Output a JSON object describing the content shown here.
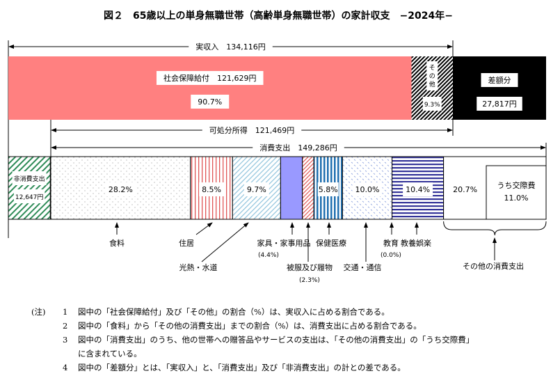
{
  "title": "図２　65歳以上の単身無職世帯（高齢単身無職世帯）の家計収支　−2024年−",
  "colors": {
    "social_security": "#ff8080",
    "difference": "#000000",
    "furniture": "#9999ff",
    "education_recreation": "#333399",
    "medical": "#1f6fb0",
    "non_consumption": "#2e8b57"
  },
  "chart_data": {
    "type": "stacked-bar",
    "income": {
      "label": "実収入　134,116円",
      "total_yen": 134116,
      "segments": [
        {
          "name": "社会保障給付",
          "label": "社会保障給付　121,629円",
          "value_yen": 121629,
          "percent_label": "90.7%",
          "pattern": "solid-red"
        },
        {
          "name": "その他",
          "label": "その他",
          "percent_label": "9.3%",
          "pattern": "diagonal-hatch"
        },
        {
          "name": "差額分",
          "label": "差額分",
          "value_yen": 27817,
          "value_label": "27,817円",
          "pattern": "solid-black"
        }
      ]
    },
    "disposable_income": {
      "label": "可処分所得　121,469円",
      "value_yen": 121469
    },
    "consumption": {
      "label": "消費支出　149,286円",
      "total_yen": 149286,
      "non_consumption": {
        "label": "非消費支出",
        "value_label": "12,647円",
        "value_yen": 12647
      },
      "categories": [
        {
          "name": "食料",
          "percent": 28.2,
          "percent_label": "28.2%",
          "pattern": "dots"
        },
        {
          "name": "住居",
          "percent": 8.5,
          "percent_label": "8.5%",
          "pattern": "red-vertical"
        },
        {
          "name": "光熱・水道",
          "percent": 9.7,
          "percent_label": "9.7%",
          "pattern": "blue-diagonal"
        },
        {
          "name": "家具・家事用品",
          "percent": 4.4,
          "percent_label": "(4.4%)",
          "pattern": "solid-purple"
        },
        {
          "name": "被服及び履物",
          "percent": 2.3,
          "percent_label": "(2.3%)",
          "pattern": "red-diagonal"
        },
        {
          "name": "保健医療",
          "percent": 5.8,
          "percent_label": "5.8%",
          "pattern": "blue-vertical"
        },
        {
          "name": "交通・通信",
          "percent": 10.0,
          "percent_label": "10.0%",
          "pattern": "blue-dots"
        },
        {
          "name": "教育",
          "percent": 0.0,
          "percent_label": "(0.0%)",
          "pattern": "none"
        },
        {
          "name": "教養娯楽",
          "percent": 10.4,
          "percent_label": "10.4%",
          "pattern": "navy-horizontal"
        },
        {
          "name": "その他の消費支出",
          "percent": 20.7,
          "percent_label": "20.7%",
          "pattern": "white"
        }
      ],
      "sub_item": {
        "label": "うち交際費",
        "percent_label": "11.0%",
        "percent": 11.0
      }
    }
  },
  "notes": {
    "head": "(注)",
    "items": [
      {
        "num": "1",
        "text": "図中の「社会保障給付」及び「その他」の割合（%）は、実収入に占める割合である。"
      },
      {
        "num": "2",
        "text": "図中の「食料」から「その他の消費支出」までの割合（%）は、消費支出に占める割合である。"
      },
      {
        "num": "3",
        "text": "図中の「消費支出」のうち、他の世帯への贈答品やサービスの支出は、「その他の消費支出」の「うち交際費」"
      },
      {
        "num": "",
        "text": "に含まれている。"
      },
      {
        "num": "4",
        "text": "図中の「差額分」とは、「実収入」と、「消費支出」及び「非消費支出」の計との差である。"
      }
    ]
  }
}
